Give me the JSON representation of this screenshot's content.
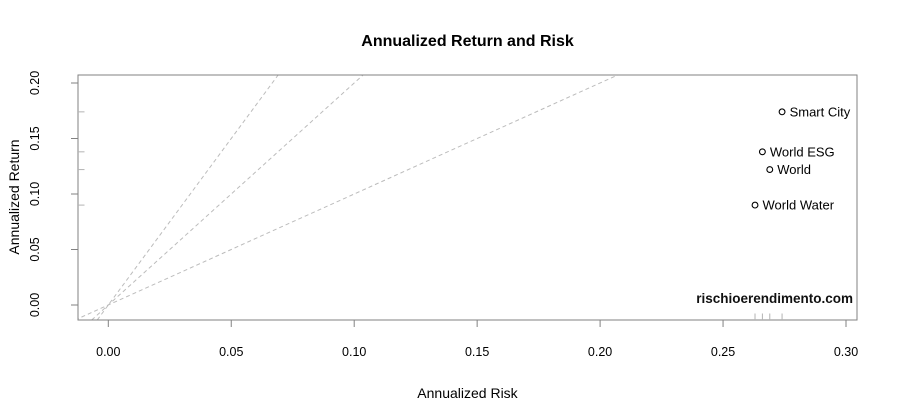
{
  "chart_data": {
    "type": "scatter",
    "title": "Annualized Return and Risk",
    "xlabel": "Annualized Risk",
    "ylabel": "Annualized Return",
    "xlim": [
      0,
      0.3
    ],
    "ylim": [
      0,
      0.2
    ],
    "grid": false,
    "legend": "none",
    "x_ticks": {
      "values": [
        0,
        0.05,
        0.1,
        0.15,
        0.2,
        0.25,
        0.3
      ],
      "labels": [
        "0.00",
        "0.05",
        "0.10",
        "0.15",
        "0.20",
        "0.25",
        "0.30"
      ]
    },
    "y_ticks": {
      "values": [
        0,
        0.05,
        0.1,
        0.15,
        0.2
      ],
      "labels": [
        "0.00",
        "0.05",
        "0.10",
        "0.15",
        "0.20"
      ]
    },
    "points": [
      {
        "label": "Smart City",
        "x": 0.274,
        "y": 0.174
      },
      {
        "label": "World ESG",
        "x": 0.266,
        "y": 0.138
      },
      {
        "label": "World",
        "x": 0.269,
        "y": 0.122
      },
      {
        "label": "World Water",
        "x": 0.263,
        "y": 0.09
      }
    ],
    "reference_lines": {
      "style": "dashed",
      "through_origin": true,
      "slopes": [
        3,
        2,
        1
      ]
    },
    "rug": {
      "x_axis": true,
      "y_axis": true
    },
    "watermark": "rischioerendimento.com",
    "colors": {
      "points": "#000000",
      "text": "#000000",
      "axis": "#828282",
      "dashed": "#bcbcbc",
      "rug": "#b3b3b3",
      "background": "#ffffff"
    }
  }
}
